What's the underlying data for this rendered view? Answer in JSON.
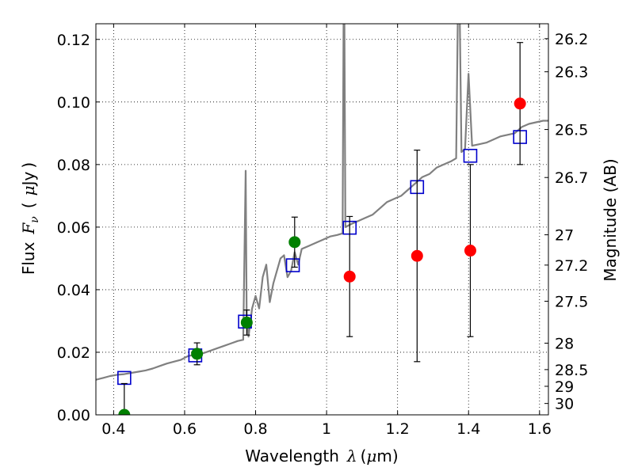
{
  "chart_data": {
    "type": "scatter",
    "xlabel": {
      "prefix": "Wavelength",
      "symbol": "λ",
      "unit_open": "(",
      "unit_mu": "μ",
      "unit_rest": "m)"
    },
    "ylabel": {
      "prefix": "Flux",
      "symbol": "F",
      "subscript": "ν",
      "unit_open": "(",
      "unit_mu": "μ",
      "unit_rest": "Jy",
      "unit_close": ")"
    },
    "y2label": "Magnitude (AB)",
    "xlim": [
      0.35,
      1.625
    ],
    "ylim": [
      0,
      0.125
    ],
    "grid": true,
    "x_ticks": [
      {
        "value": 0.4,
        "label": "0.4"
      },
      {
        "value": 0.6,
        "label": "0.6"
      },
      {
        "value": 0.8,
        "label": "0.8"
      },
      {
        "value": 1.0,
        "label": "1"
      },
      {
        "value": 1.2,
        "label": "1.2"
      },
      {
        "value": 1.4,
        "label": "1.4"
      },
      {
        "value": 1.6,
        "label": "1.6"
      }
    ],
    "y_ticks": [
      {
        "value": 0.0,
        "label": "0.00"
      },
      {
        "value": 0.02,
        "label": "0.02"
      },
      {
        "value": 0.04,
        "label": "0.04"
      },
      {
        "value": 0.06,
        "label": "0.06"
      },
      {
        "value": 0.08,
        "label": "0.08"
      },
      {
        "value": 0.1,
        "label": "0.10"
      },
      {
        "value": 0.12,
        "label": "0.12"
      }
    ],
    "mag_ticks": [
      {
        "value": 26.2,
        "label": "26.2"
      },
      {
        "value": 26.3,
        "label": "26.3"
      },
      {
        "value": 26.5,
        "label": "26.5"
      },
      {
        "value": 26.7,
        "label": "26.7"
      },
      {
        "value": 27.0,
        "label": "27"
      },
      {
        "value": 27.2,
        "label": "27.2"
      },
      {
        "value": 27.5,
        "label": "27.5"
      },
      {
        "value": 28.0,
        "label": "28"
      },
      {
        "value": 28.5,
        "label": "28.5"
      },
      {
        "value": 29.0,
        "label": "29"
      },
      {
        "value": 30.0,
        "label": "30"
      }
    ],
    "series": [
      {
        "type": "line",
        "color": "#808080",
        "points": [
          [
            0.35,
            0.0112
          ],
          [
            0.37,
            0.0118
          ],
          [
            0.39,
            0.0124
          ],
          [
            0.41,
            0.0128
          ],
          [
            0.43,
            0.013
          ],
          [
            0.45,
            0.0134
          ],
          [
            0.47,
            0.0138
          ],
          [
            0.49,
            0.0142
          ],
          [
            0.51,
            0.0148
          ],
          [
            0.53,
            0.0156
          ],
          [
            0.55,
            0.0164
          ],
          [
            0.57,
            0.017
          ],
          [
            0.59,
            0.0176
          ],
          [
            0.61,
            0.0188
          ],
          [
            0.63,
            0.0192
          ],
          [
            0.65,
            0.0196
          ],
          [
            0.67,
            0.0204
          ],
          [
            0.69,
            0.0212
          ],
          [
            0.71,
            0.022
          ],
          [
            0.73,
            0.0228
          ],
          [
            0.75,
            0.0236
          ],
          [
            0.765,
            0.024
          ],
          [
            0.772,
            0.078
          ],
          [
            0.775,
            0.03
          ],
          [
            0.78,
            0.025
          ],
          [
            0.79,
            0.034
          ],
          [
            0.8,
            0.038
          ],
          [
            0.81,
            0.034
          ],
          [
            0.82,
            0.044
          ],
          [
            0.83,
            0.048
          ],
          [
            0.84,
            0.036
          ],
          [
            0.85,
            0.042
          ],
          [
            0.86,
            0.046
          ],
          [
            0.87,
            0.05
          ],
          [
            0.88,
            0.051
          ],
          [
            0.89,
            0.044
          ],
          [
            0.9,
            0.046
          ],
          [
            0.91,
            0.052
          ],
          [
            0.92,
            0.048
          ],
          [
            0.93,
            0.053
          ],
          [
            0.95,
            0.054
          ],
          [
            0.97,
            0.055
          ],
          [
            0.99,
            0.056
          ],
          [
            1.01,
            0.057
          ],
          [
            1.03,
            0.0575
          ],
          [
            1.045,
            0.058
          ],
          [
            1.048,
            0.13
          ],
          [
            1.05,
            0.13
          ],
          [
            1.053,
            0.06
          ],
          [
            1.07,
            0.061
          ],
          [
            1.09,
            0.062
          ],
          [
            1.11,
            0.063
          ],
          [
            1.13,
            0.064
          ],
          [
            1.15,
            0.066
          ],
          [
            1.17,
            0.068
          ],
          [
            1.19,
            0.069
          ],
          [
            1.21,
            0.07
          ],
          [
            1.23,
            0.072
          ],
          [
            1.25,
            0.074
          ],
          [
            1.27,
            0.076
          ],
          [
            1.29,
            0.077
          ],
          [
            1.31,
            0.079
          ],
          [
            1.33,
            0.08
          ],
          [
            1.35,
            0.081
          ],
          [
            1.365,
            0.082
          ],
          [
            1.37,
            0.13
          ],
          [
            1.375,
            0.13
          ],
          [
            1.38,
            0.084
          ],
          [
            1.39,
            0.085
          ],
          [
            1.4,
            0.109
          ],
          [
            1.41,
            0.086
          ],
          [
            1.43,
            0.0865
          ],
          [
            1.45,
            0.087
          ],
          [
            1.47,
            0.088
          ],
          [
            1.49,
            0.089
          ],
          [
            1.51,
            0.0895
          ],
          [
            1.53,
            0.09
          ],
          [
            1.55,
            0.092
          ],
          [
            1.57,
            0.093
          ],
          [
            1.59,
            0.0935
          ],
          [
            1.61,
            0.094
          ],
          [
            1.625,
            0.094
          ]
        ]
      },
      {
        "type": "markers",
        "marker": "square",
        "color": "#0000cc",
        "points": [
          [
            0.43,
            0.0118
          ],
          [
            0.63,
            0.019
          ],
          [
            0.77,
            0.0298
          ],
          [
            0.905,
            0.0478
          ],
          [
            1.065,
            0.0598
          ],
          [
            1.255,
            0.0728
          ],
          [
            1.405,
            0.0828
          ],
          [
            1.545,
            0.0888
          ]
        ]
      },
      {
        "type": "errorbar",
        "color": "#008000",
        "marker": "circle",
        "points": [
          {
            "x": 0.43,
            "y": 0.0,
            "err": 0.01
          },
          {
            "x": 0.635,
            "y": 0.0195,
            "err": 0.0035
          },
          {
            "x": 0.775,
            "y": 0.0295,
            "err": 0.004
          },
          {
            "x": 0.91,
            "y": 0.0552,
            "err": 0.008
          }
        ]
      },
      {
        "type": "errorbar",
        "color": "#ff0000",
        "marker": "circle",
        "points": [
          {
            "x": 1.065,
            "y": 0.0442,
            "err": 0.0192
          },
          {
            "x": 1.255,
            "y": 0.0508,
            "err": 0.0338
          },
          {
            "x": 1.405,
            "y": 0.0525,
            "err": 0.0275
          },
          {
            "x": 1.545,
            "y": 0.0995,
            "err": 0.0195
          }
        ]
      }
    ]
  }
}
